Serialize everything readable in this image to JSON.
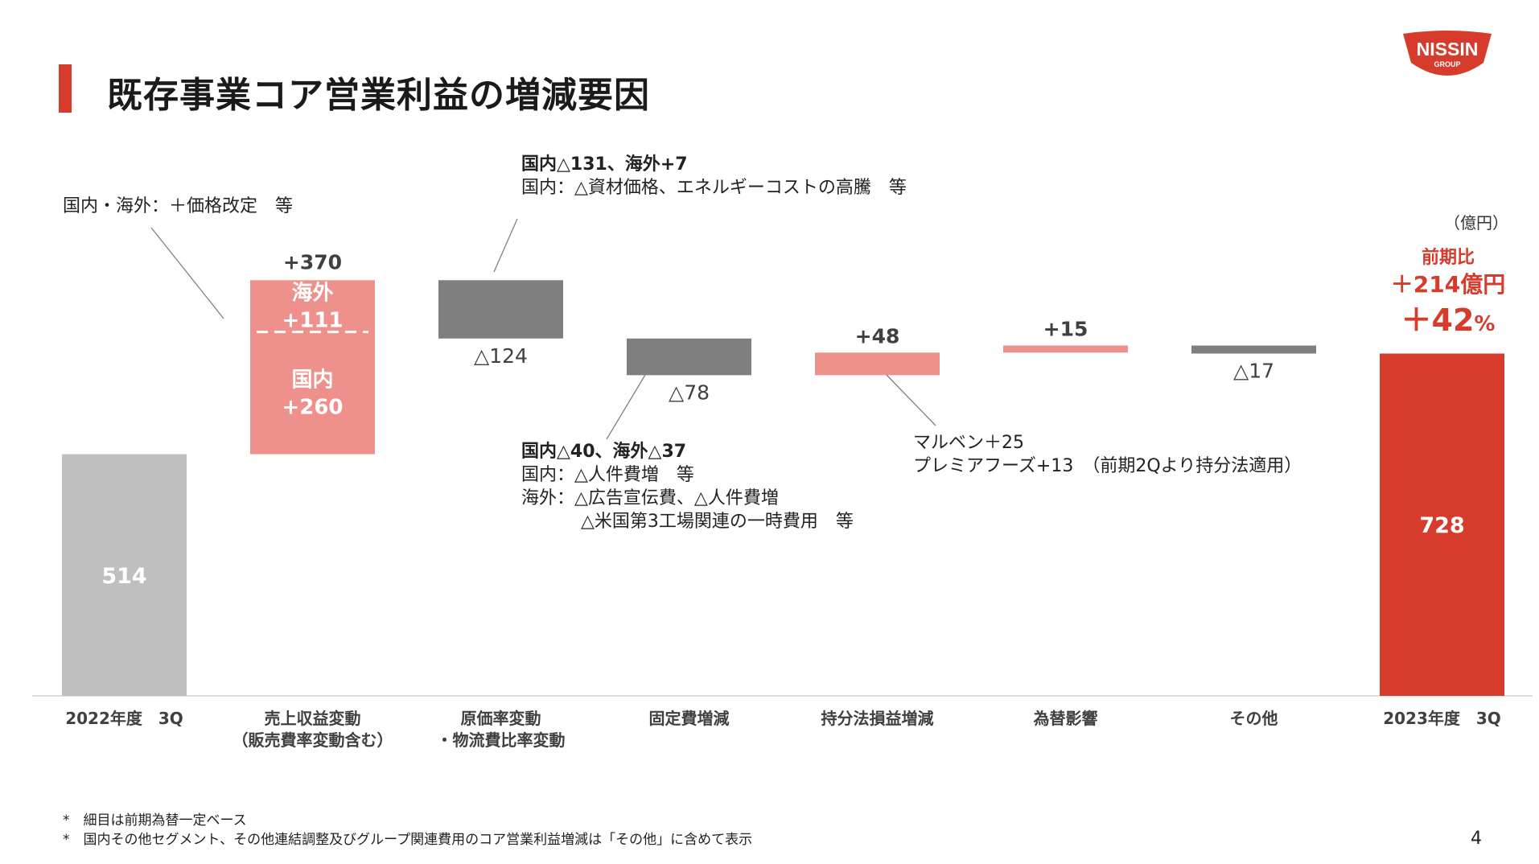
{
  "title": "既存事業コア営業利益の増減要因",
  "unit": "（億円）",
  "yoy": {
    "label": "前期比",
    "amount": "＋214億円",
    "pct": "＋42",
    "pct_unit": "%"
  },
  "colors": {
    "accent": "#d63b2c",
    "base": "#bfbfbf",
    "positive": "#ee918c",
    "negative": "#7f7f7f",
    "final": "#d63b2c"
  },
  "logo": {
    "text": "NISSIN",
    "sub": "GROUP"
  },
  "chart_data": {
    "type": "bar",
    "subtype": "waterfall",
    "categories": [
      [
        "2022年度　3Q"
      ],
      [
        "売上収益変動",
        "（販売費率変動含む）"
      ],
      [
        "原価率変動",
        "・物流費比率変動"
      ],
      [
        "固定費増減"
      ],
      [
        "持分法損益増減"
      ],
      [
        "為替影響"
      ],
      [
        "その他"
      ],
      [
        "2023年度　3Q"
      ]
    ],
    "steps": [
      {
        "kind": "total",
        "value": 514,
        "label": "514"
      },
      {
        "kind": "delta",
        "value": 370,
        "label": "+370",
        "segments": [
          {
            "name": "国内",
            "value": 260,
            "label": "+260"
          },
          {
            "name": "海外",
            "value": 111,
            "label": "+111"
          }
        ]
      },
      {
        "kind": "delta",
        "value": -124,
        "label": "△124"
      },
      {
        "kind": "delta",
        "value": -78,
        "label": "△78"
      },
      {
        "kind": "delta",
        "value": 48,
        "label": "+48"
      },
      {
        "kind": "delta",
        "value": 15,
        "label": "+15"
      },
      {
        "kind": "delta",
        "value": -17,
        "label": "△17"
      },
      {
        "kind": "total",
        "value": 728,
        "label": "728"
      }
    ]
  },
  "annotations": {
    "price": "国内・海外：＋価格改定　等",
    "cost_head": "国内△131、海外+7",
    "cost_body": "国内：△資材価格、エネルギーコストの高騰　等",
    "fixed_head": "国内△40、海外△37",
    "fixed_line1": "国内：△人件費増　等",
    "fixed_line2": "海外：△広告宣伝費、△人件費増",
    "fixed_line3": "△米国第3工場関連の一時費用　等",
    "equity_line1": "マルベン＋25",
    "equity_line2": "プレミアフーズ+13　（前期2Qより持分法適用）"
  },
  "footnotes": [
    "*　細目は前期為替一定ベース",
    "*　国内その他セグメント、その他連結調整及びグループ関連費用のコア営業利益増減は「その他」に含めて表示"
  ],
  "page_number": "4"
}
